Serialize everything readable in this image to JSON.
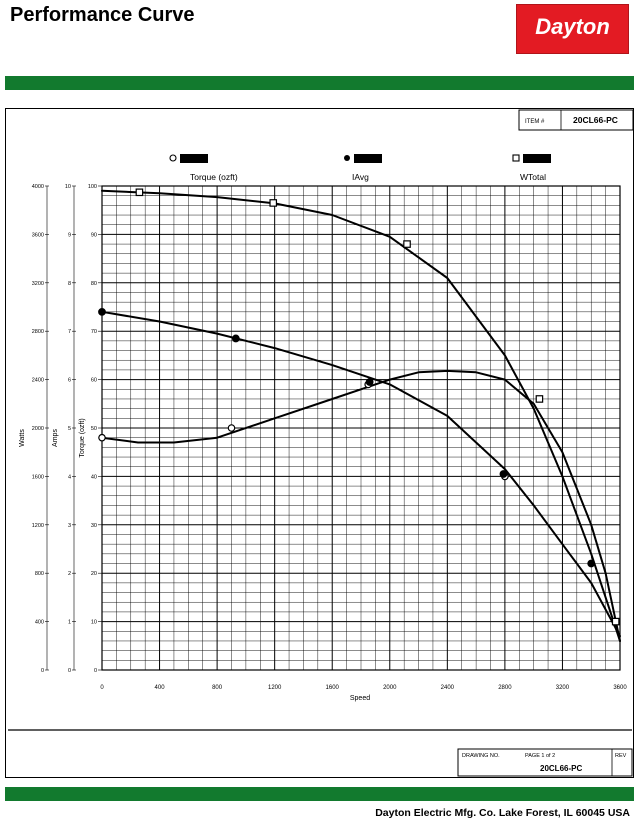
{
  "header": {
    "title": "Performance Curve",
    "logo_text": "Dayton",
    "brand_color": "#e31b23",
    "bar_color": "#127a2e"
  },
  "item_box": {
    "label": "ITEM #",
    "value": "20CL66-PC"
  },
  "drawing_box": {
    "drawing_no_label": "DRAWING NO.",
    "page_label": "PAGE 1 of 2",
    "rev_label": "REV",
    "value": "20CL66-PC"
  },
  "footer": {
    "company": "Dayton Electric Mfg. Co.  Lake Forest, IL  60045  USA"
  },
  "chart_data": {
    "type": "line",
    "xlabel": "Speed",
    "xlim": [
      0,
      3600
    ],
    "x_ticks": [
      "0",
      "400",
      "800",
      "1200",
      "1600",
      "2000",
      "2400",
      "2800",
      "3200",
      "3600"
    ],
    "y_axes": [
      {
        "label": "Watts",
        "ticks": [
          "0",
          "400",
          "800",
          "1200",
          "1600",
          "2000",
          "2400",
          "2800",
          "3200",
          "3600",
          "4000"
        ]
      },
      {
        "label": "Amps",
        "ticks": [
          "0",
          "1",
          "2",
          "3",
          "4",
          "5",
          "6",
          "7",
          "8",
          "9",
          "10"
        ]
      },
      {
        "label": "Torque (ozft)",
        "ticks": [
          "0",
          "10",
          "20",
          "30",
          "40",
          "50",
          "60",
          "70",
          "80",
          "90",
          "100"
        ]
      }
    ],
    "ylim": [
      0,
      100
    ],
    "grid": true,
    "legend_placement": "top",
    "series": [
      {
        "name": "Torque (ozft)",
        "marker": "circle-open",
        "x": [
          0,
          250,
          500,
          800,
          1200,
          1600,
          1800,
          2000,
          2200,
          2400,
          2600,
          2800,
          3000,
          3200,
          3400,
          3500,
          3600
        ],
        "y": [
          48,
          47,
          47,
          48,
          52,
          56,
          58,
          60,
          61.5,
          61.8,
          61.5,
          60,
          55,
          45,
          30,
          20,
          6
        ],
        "marker_x": [
          0,
          900,
          1850,
          2800
        ],
        "marker_y": [
          48,
          50,
          59,
          40
        ]
      },
      {
        "name": "IAvg",
        "marker": "circle-filled",
        "x": [
          0,
          400,
          800,
          1200,
          1600,
          2000,
          2400,
          2800,
          3000,
          3200,
          3400,
          3600
        ],
        "y": [
          74,
          72,
          69.5,
          66.5,
          63,
          59,
          52.5,
          41.5,
          34,
          26,
          18,
          7
        ],
        "marker_x": [
          0,
          930,
          1860,
          2790,
          3400
        ],
        "marker_y": [
          74,
          68.5,
          59.5,
          40.5,
          22
        ]
      },
      {
        "name": "WTotal",
        "marker": "square-open",
        "x": [
          0,
          400,
          800,
          1200,
          1600,
          2000,
          2400,
          2800,
          3000,
          3200,
          3400,
          3600
        ],
        "y": [
          99,
          98.5,
          97.7,
          96.4,
          94,
          89.5,
          81,
          65,
          54,
          40,
          24,
          6
        ],
        "marker_x": [
          260,
          1190,
          2120,
          3040,
          3570
        ],
        "marker_y": [
          98.7,
          96.5,
          88,
          56,
          10
        ]
      }
    ]
  }
}
